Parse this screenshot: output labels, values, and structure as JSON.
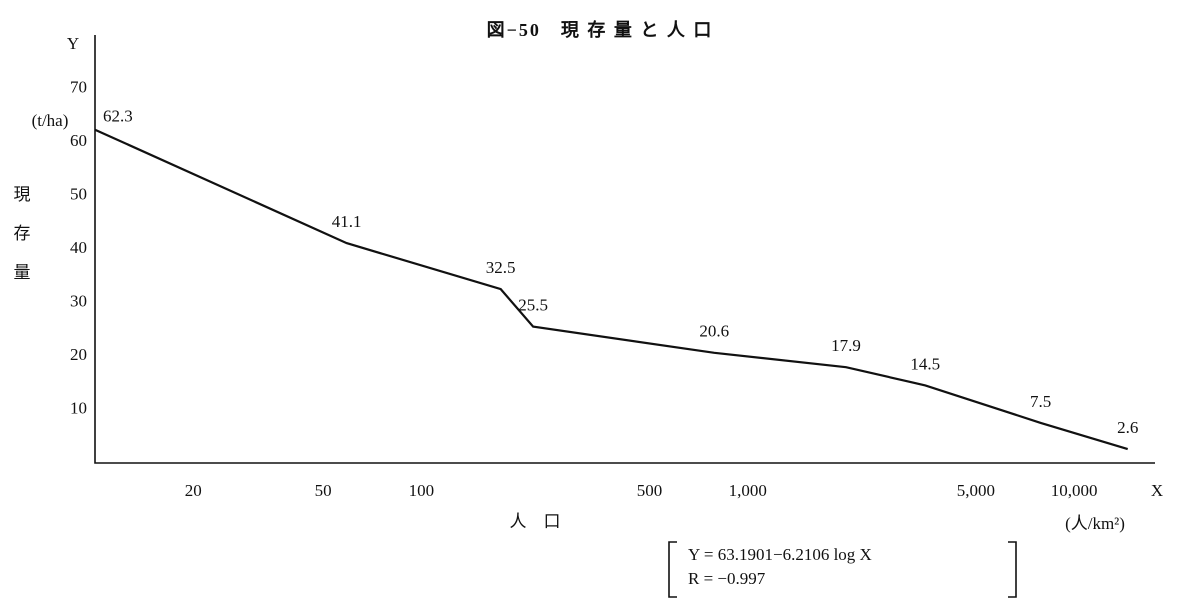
{
  "chart_data": {
    "type": "line",
    "title": "図−50　現 存 量 と 人 口",
    "y_axis_symbol": "Y",
    "y_unit": "(t/ha)",
    "y_label": "現存量",
    "x_axis_symbol": "X",
    "x_label": "人　口",
    "x_unit": "(人/km²)",
    "formula": [
      "Y = 63.1901−6.2106 log X",
      "R = −0.997"
    ],
    "x": [
      10,
      59,
      175,
      220,
      790,
      2000,
      3500,
      7900,
      14600
    ],
    "values": [
      62.3,
      41.1,
      32.5,
      25.5,
      20.6,
      17.9,
      14.5,
      7.5,
      2.6
    ],
    "color": "#111111",
    "x_log": true,
    "xlim": [
      10,
      17700
    ],
    "xticks": [
      20,
      50,
      100,
      500,
      {
        "value": 1000,
        "label": "1,000"
      },
      {
        "value": 5000,
        "label": "5,000"
      },
      {
        "value": 10000,
        "label": "10,000"
      }
    ],
    "ylim": [
      0,
      80
    ],
    "yticks": [
      10,
      20,
      30,
      40,
      50,
      60,
      70
    ]
  }
}
